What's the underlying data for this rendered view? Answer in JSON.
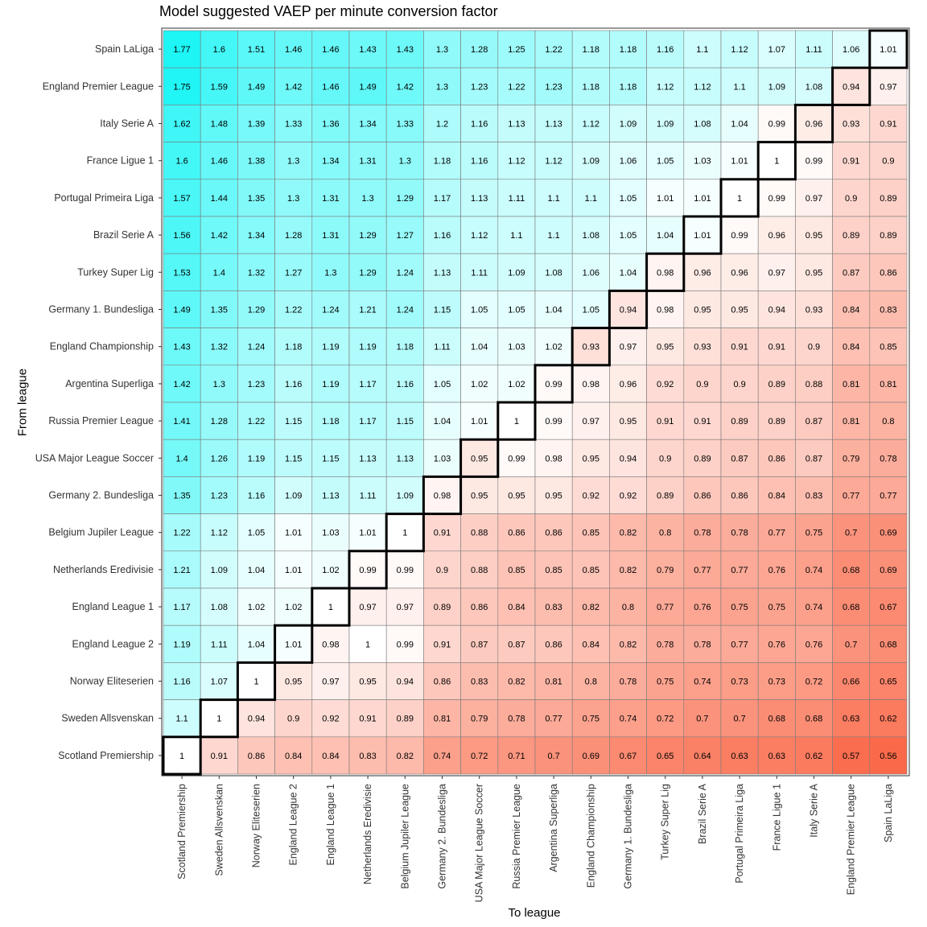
{
  "chart_data": {
    "type": "heatmap",
    "title": "Model suggested VAEP per minute conversion factor",
    "xlabel": "To league",
    "ylabel": "From league",
    "columns": [
      "Scotland Premiership",
      "Sweden Allsvenskan",
      "Norway Eliteserien",
      "England League 2",
      "England League 1",
      "Netherlands Eredivisie",
      "Belgium Jupiler League",
      "Germany 2. Bundesliga",
      "USA Major League Soccer",
      "Russia Premier League",
      "Argentina Superliga",
      "England Championship",
      "Germany 1. Bundesliga",
      "Turkey Super Lig",
      "Brazil Serie A",
      "Portugal Primeira Liga",
      "France Ligue 1",
      "Italy Serie A",
      "England Premier League",
      "Spain LaLiga"
    ],
    "rows": [
      "Spain LaLiga",
      "England Premier League",
      "Italy Serie A",
      "France Ligue 1",
      "Portugal Primeira Liga",
      "Brazil Serie A",
      "Turkey Super Lig",
      "Germany 1. Bundesliga",
      "England Championship",
      "Argentina Superliga",
      "Russia Premier League",
      "USA Major League Soccer",
      "Germany 2. Bundesliga",
      "Belgium Jupiler League",
      "Netherlands Eredivisie",
      "England League 1",
      "England League 2",
      "Norway Eliteserien",
      "Sweden Allsvenskan",
      "Scotland Premiership"
    ],
    "values": [
      [
        "1.77",
        "1.6",
        "1.51",
        "1.46",
        "1.46",
        "1.43",
        "1.43",
        "1.3",
        "1.28",
        "1.25",
        "1.22",
        "1.18",
        "1.18",
        "1.16",
        "1.1",
        "1.12",
        "1.07",
        "1.11",
        "1.06",
        "1.01"
      ],
      [
        "1.75",
        "1.59",
        "1.49",
        "1.42",
        "1.46",
        "1.49",
        "1.42",
        "1.3",
        "1.23",
        "1.22",
        "1.23",
        "1.18",
        "1.18",
        "1.12",
        "1.12",
        "1.1",
        "1.09",
        "1.08",
        "0.94",
        "0.97"
      ],
      [
        "1.62",
        "1.48",
        "1.39",
        "1.33",
        "1.36",
        "1.34",
        "1.33",
        "1.2",
        "1.16",
        "1.13",
        "1.13",
        "1.12",
        "1.09",
        "1.09",
        "1.08",
        "1.04",
        "0.99",
        "0.96",
        "0.93",
        "0.91"
      ],
      [
        "1.6",
        "1.46",
        "1.38",
        "1.3",
        "1.34",
        "1.31",
        "1.3",
        "1.18",
        "1.16",
        "1.12",
        "1.12",
        "1.09",
        "1.06",
        "1.05",
        "1.03",
        "1.01",
        "1",
        "0.99",
        "0.91",
        "0.9"
      ],
      [
        "1.57",
        "1.44",
        "1.35",
        "1.3",
        "1.31",
        "1.3",
        "1.29",
        "1.17",
        "1.13",
        "1.11",
        "1.1",
        "1.1",
        "1.05",
        "1.01",
        "1.01",
        "1",
        "0.99",
        "0.97",
        "0.9",
        "0.89"
      ],
      [
        "1.56",
        "1.42",
        "1.34",
        "1.28",
        "1.31",
        "1.29",
        "1.27",
        "1.16",
        "1.12",
        "1.1",
        "1.1",
        "1.08",
        "1.05",
        "1.04",
        "1.01",
        "0.99",
        "0.96",
        "0.95",
        "0.89",
        "0.89"
      ],
      [
        "1.53",
        "1.4",
        "1.32",
        "1.27",
        "1.3",
        "1.29",
        "1.24",
        "1.13",
        "1.11",
        "1.09",
        "1.08",
        "1.06",
        "1.04",
        "0.98",
        "0.96",
        "0.96",
        "0.97",
        "0.95",
        "0.87",
        "0.86"
      ],
      [
        "1.49",
        "1.35",
        "1.29",
        "1.22",
        "1.24",
        "1.21",
        "1.24",
        "1.15",
        "1.05",
        "1.05",
        "1.04",
        "1.05",
        "0.94",
        "0.98",
        "0.95",
        "0.95",
        "0.94",
        "0.93",
        "0.84",
        "0.83"
      ],
      [
        "1.43",
        "1.32",
        "1.24",
        "1.18",
        "1.19",
        "1.19",
        "1.18",
        "1.11",
        "1.04",
        "1.03",
        "1.02",
        "0.93",
        "0.97",
        "0.95",
        "0.93",
        "0.91",
        "0.91",
        "0.9",
        "0.84",
        "0.85"
      ],
      [
        "1.42",
        "1.3",
        "1.23",
        "1.16",
        "1.19",
        "1.17",
        "1.16",
        "1.05",
        "1.02",
        "1.02",
        "0.99",
        "0.98",
        "0.96",
        "0.92",
        "0.9",
        "0.9",
        "0.89",
        "0.88",
        "0.81",
        "0.81"
      ],
      [
        "1.41",
        "1.28",
        "1.22",
        "1.15",
        "1.18",
        "1.17",
        "1.15",
        "1.04",
        "1.01",
        "1",
        "0.99",
        "0.97",
        "0.95",
        "0.91",
        "0.91",
        "0.89",
        "0.89",
        "0.87",
        "0.81",
        "0.8"
      ],
      [
        "1.4",
        "1.26",
        "1.19",
        "1.15",
        "1.15",
        "1.13",
        "1.13",
        "1.03",
        "0.95",
        "0.99",
        "0.98",
        "0.95",
        "0.94",
        "0.9",
        "0.89",
        "0.87",
        "0.86",
        "0.87",
        "0.79",
        "0.78"
      ],
      [
        "1.35",
        "1.23",
        "1.16",
        "1.09",
        "1.13",
        "1.11",
        "1.09",
        "0.98",
        "0.95",
        "0.95",
        "0.95",
        "0.92",
        "0.92",
        "0.89",
        "0.86",
        "0.86",
        "0.84",
        "0.83",
        "0.77",
        "0.77"
      ],
      [
        "1.22",
        "1.12",
        "1.05",
        "1.01",
        "1.03",
        "1.01",
        "1",
        "0.91",
        "0.88",
        "0.86",
        "0.86",
        "0.85",
        "0.82",
        "0.8",
        "0.78",
        "0.78",
        "0.77",
        "0.75",
        "0.7",
        "0.69"
      ],
      [
        "1.21",
        "1.09",
        "1.04",
        "1.01",
        "1.02",
        "0.99",
        "0.99",
        "0.9",
        "0.88",
        "0.85",
        "0.85",
        "0.85",
        "0.82",
        "0.79",
        "0.77",
        "0.77",
        "0.76",
        "0.74",
        "0.68",
        "0.69"
      ],
      [
        "1.17",
        "1.08",
        "1.02",
        "1.02",
        "1",
        "0.97",
        "0.97",
        "0.89",
        "0.86",
        "0.84",
        "0.83",
        "0.82",
        "0.8",
        "0.77",
        "0.76",
        "0.75",
        "0.75",
        "0.74",
        "0.68",
        "0.67"
      ],
      [
        "1.19",
        "1.11",
        "1.04",
        "1.01",
        "0.98",
        "1",
        "0.99",
        "0.91",
        "0.87",
        "0.87",
        "0.86",
        "0.84",
        "0.82",
        "0.78",
        "0.78",
        "0.77",
        "0.76",
        "0.76",
        "0.7",
        "0.68"
      ],
      [
        "1.16",
        "1.07",
        "1",
        "0.95",
        "0.97",
        "0.95",
        "0.94",
        "0.86",
        "0.83",
        "0.82",
        "0.81",
        "0.8",
        "0.78",
        "0.75",
        "0.74",
        "0.73",
        "0.73",
        "0.72",
        "0.66",
        "0.65"
      ],
      [
        "1.1",
        "1",
        "0.94",
        "0.9",
        "0.92",
        "0.91",
        "0.89",
        "0.81",
        "0.79",
        "0.78",
        "0.77",
        "0.75",
        "0.74",
        "0.72",
        "0.7",
        "0.7",
        "0.68",
        "0.68",
        "0.63",
        "0.62"
      ],
      [
        "1",
        "0.91",
        "0.86",
        "0.84",
        "0.84",
        "0.83",
        "0.82",
        "0.74",
        "0.72",
        "0.71",
        "0.7",
        "0.69",
        "0.67",
        "0.65",
        "0.64",
        "0.63",
        "0.63",
        "0.62",
        "0.57",
        "0.56"
      ]
    ],
    "color_scale": {
      "low": "#fa6a4a",
      "mid": "#ffffff",
      "high": "#1ef5f5",
      "low_value": 0.56,
      "mid_value": 1,
      "high_value": 1.77
    },
    "legend": "none",
    "grid": true
  }
}
